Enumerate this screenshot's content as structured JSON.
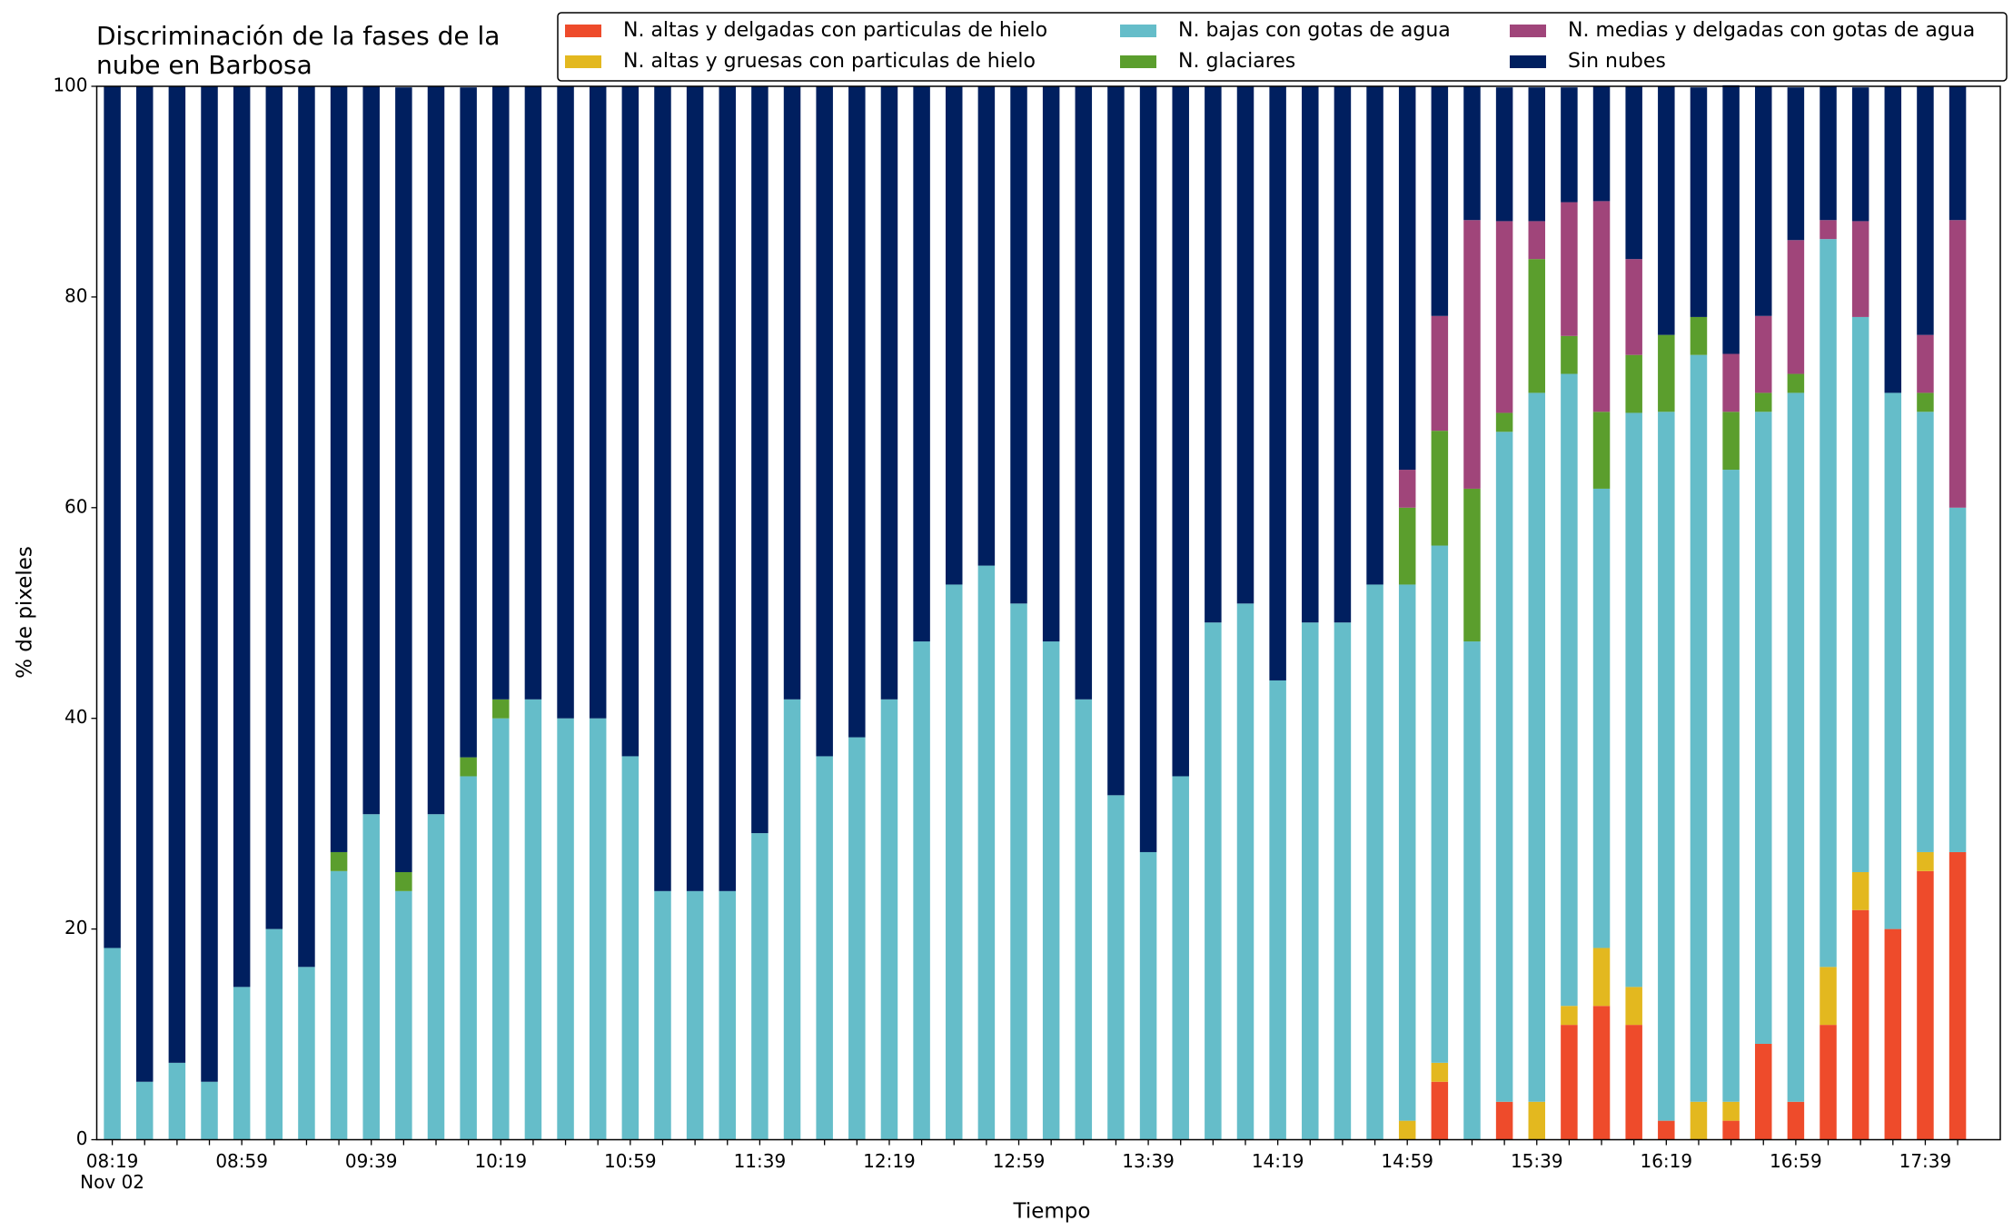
{
  "chart_data": {
    "type": "stacked_bar",
    "title_lines": [
      "Discriminación de la fases de la",
      "nube en Barbosa"
    ],
    "x_label": "Tiempo",
    "y_label": "% de pixeles",
    "date_label": "Nov 02",
    "categories": [
      "08:19",
      null,
      null,
      null,
      "08:59",
      null,
      null,
      null,
      "09:39",
      null,
      null,
      null,
      "10:19",
      null,
      null,
      null,
      "10:59",
      null,
      null,
      null,
      "11:39",
      null,
      null,
      null,
      "12:19",
      null,
      null,
      null,
      "12:59",
      null,
      null,
      null,
      "13:39",
      null,
      null,
      null,
      "14:19",
      null,
      null,
      null,
      "14:59",
      null,
      null,
      null,
      "15:39",
      null,
      null,
      null,
      "16:19",
      null,
      null,
      null,
      "16:59",
      null,
      null,
      null,
      "17:39",
      null
    ],
    "ylim": [
      0,
      100
    ],
    "yticks": [
      0,
      20,
      40,
      60,
      80,
      100
    ],
    "legend": "top-right",
    "series": [
      {
        "name": "N. altas y delgadas con particulas de hielo",
        "color": "#ee4b2b",
        "values": [
          0,
          0,
          0,
          0,
          0,
          0,
          0,
          0,
          0,
          0,
          0,
          0,
          0,
          0,
          0,
          0,
          0,
          0,
          0,
          0,
          0,
          0,
          0,
          0,
          0,
          0,
          0,
          0,
          0,
          0,
          0,
          0,
          0,
          0,
          0,
          0,
          0,
          0,
          0,
          0,
          0,
          5.5,
          0,
          3.6,
          0,
          10.9,
          12.7,
          10.9,
          1.8,
          0,
          1.8,
          9.1,
          3.6,
          10.9,
          21.8,
          20,
          25.5,
          27.3
        ]
      },
      {
        "name": "N. altas y gruesas con particulas de hielo",
        "color": "#e3b81f",
        "values": [
          0,
          0,
          0,
          0,
          0,
          0,
          0,
          0,
          0,
          0,
          0,
          0,
          0,
          0,
          0,
          0,
          0,
          0,
          0,
          0,
          0,
          0,
          0,
          0,
          0,
          0,
          0,
          0,
          0,
          0,
          0,
          0,
          0,
          0,
          0,
          0,
          0,
          0,
          0,
          0,
          1.8,
          1.8,
          0,
          0,
          3.6,
          1.8,
          5.5,
          3.6,
          0,
          3.6,
          1.8,
          0,
          0,
          5.5,
          3.6,
          0,
          1.8,
          0
        ]
      },
      {
        "name": "N. bajas con gotas de agua",
        "color": "#65bdc9",
        "values": [
          18.2,
          5.5,
          7.3,
          5.5,
          14.5,
          20,
          16.4,
          25.5,
          30.9,
          23.6,
          30.9,
          34.5,
          40,
          41.8,
          40,
          40,
          36.4,
          23.6,
          23.6,
          23.6,
          29.1,
          41.8,
          36.4,
          38.2,
          41.8,
          47.3,
          52.7,
          54.5,
          50.9,
          47.3,
          41.8,
          32.7,
          27.3,
          34.5,
          49.1,
          50.9,
          43.6,
          49.1,
          49.1,
          52.7,
          50.9,
          49.1,
          47.3,
          63.6,
          67.3,
          60,
          43.6,
          54.5,
          67.3,
          70.9,
          60,
          60,
          67.3,
          69.1,
          52.7,
          50.9,
          41.8,
          32.7
        ]
      },
      {
        "name": "N. glaciares",
        "color": "#5b9e2d",
        "values": [
          0,
          0,
          0,
          0,
          0,
          0,
          0,
          1.8,
          0,
          1.8,
          0,
          1.8,
          1.8,
          0,
          0,
          0,
          0,
          0,
          0,
          0,
          0,
          0,
          0,
          0,
          0,
          0,
          0,
          0,
          0,
          0,
          0,
          0,
          0,
          0,
          0,
          0,
          0,
          0,
          0,
          0,
          7.3,
          10.9,
          14.5,
          1.8,
          12.7,
          3.6,
          7.3,
          5.5,
          7.3,
          3.6,
          5.5,
          1.8,
          1.8,
          0,
          0,
          0,
          1.8,
          0
        ]
      },
      {
        "name": "N. medias y delgadas con gotas de agua",
        "color": "#a0457a",
        "values": [
          0,
          0,
          0,
          0,
          0,
          0,
          0,
          0,
          0,
          0,
          0,
          0,
          0,
          0,
          0,
          0,
          0,
          0,
          0,
          0,
          0,
          0,
          0,
          0,
          0,
          0,
          0,
          0,
          0,
          0,
          0,
          0,
          0,
          0,
          0,
          0,
          0,
          0,
          0,
          0,
          3.6,
          10.9,
          25.5,
          18.2,
          3.6,
          12.7,
          20,
          9.1,
          0,
          0,
          5.5,
          7.3,
          12.7,
          1.8,
          9.1,
          0,
          5.5,
          27.3
        ]
      },
      {
        "name": "Sin nubes",
        "color": "#001f5f",
        "values": [
          81.8,
          94.5,
          92.7,
          94.5,
          85.5,
          80,
          83.6,
          72.7,
          69.1,
          74.5,
          69.1,
          63.6,
          58.2,
          58.2,
          60,
          60,
          63.6,
          76.4,
          76.4,
          76.4,
          70.9,
          58.2,
          63.6,
          61.8,
          58.2,
          52.7,
          47.3,
          45.5,
          49.1,
          52.7,
          58.2,
          67.3,
          72.7,
          65.5,
          50.9,
          49.1,
          56.4,
          50.9,
          50.9,
          47.3,
          36.4,
          21.8,
          12.7,
          12.7,
          12.7,
          10.9,
          10.9,
          16.4,
          23.6,
          21.8,
          25.5,
          21.8,
          14.5,
          12.7,
          12.7,
          29.1,
          23.6,
          12.7
        ]
      }
    ]
  }
}
